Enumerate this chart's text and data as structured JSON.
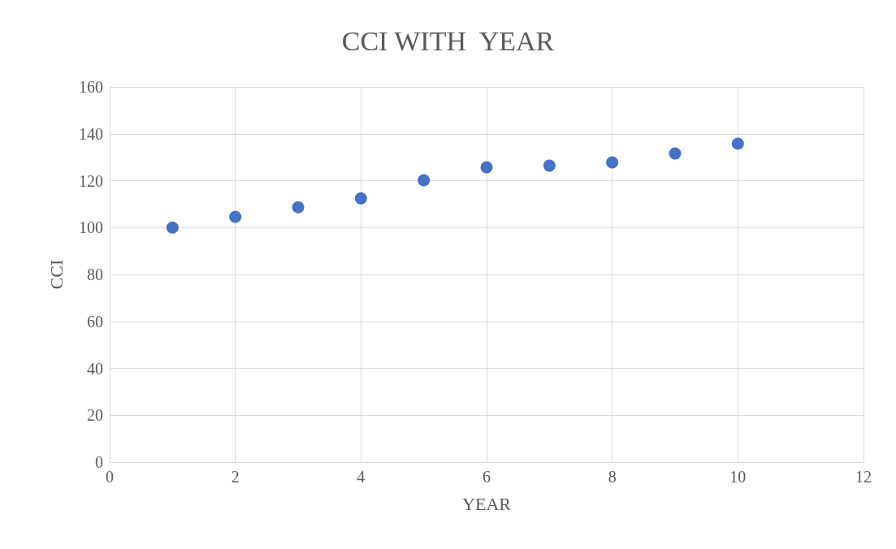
{
  "chart_data": {
    "type": "scatter",
    "title": "CCI WITH  YEAR",
    "xlabel": "YEAR",
    "ylabel": "CCI",
    "x": [
      1,
      2,
      3,
      4,
      5,
      6,
      7,
      8,
      9,
      10
    ],
    "values": [
      100,
      104.6,
      108.7,
      112.5,
      120.2,
      125.7,
      126.4,
      127.8,
      131.6,
      135.8
    ],
    "color": "#4472c4",
    "marker": "circle",
    "xlim": [
      0,
      12
    ],
    "xticks": [
      0,
      2,
      4,
      6,
      8,
      10,
      12
    ],
    "ylim": [
      0,
      160
    ],
    "yticks": [
      0,
      20,
      40,
      60,
      80,
      100,
      120,
      140,
      160
    ],
    "grid": true
  }
}
